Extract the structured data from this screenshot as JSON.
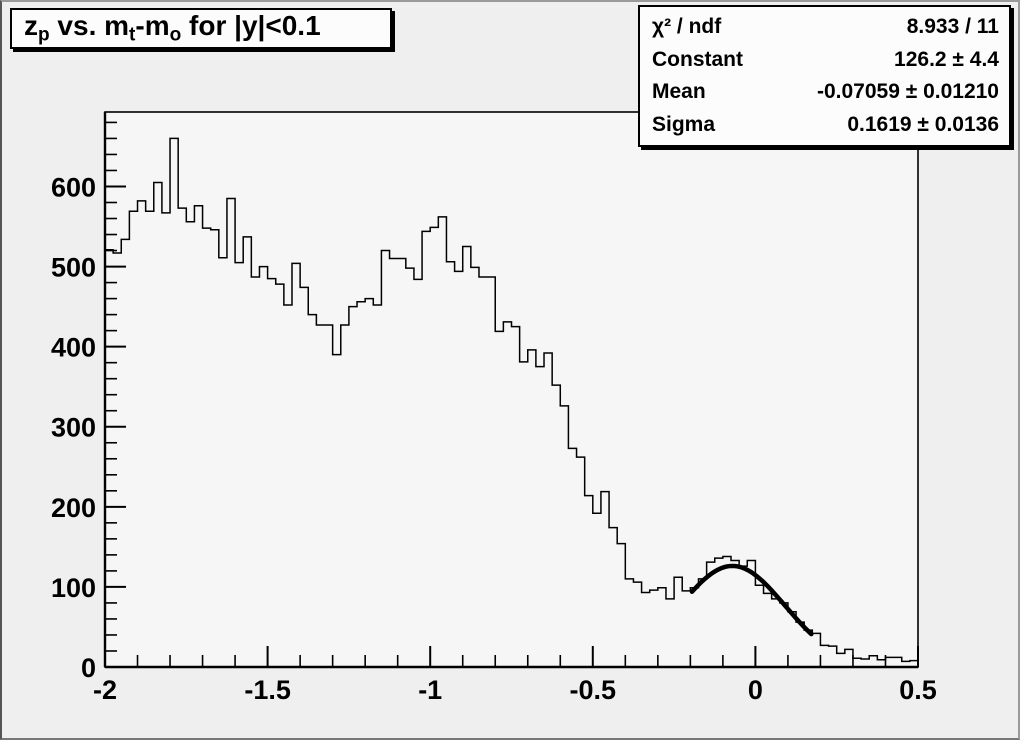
{
  "canvas": {
    "bg": "#efefef",
    "frame_bg": "#f6f6f6",
    "line_color": "#000000"
  },
  "title": {
    "text": "z_p vs. m_t-m_o for |y|<0.1",
    "segments": [
      {
        "text": "z",
        "sub": false
      },
      {
        "text": "p",
        "sub": true
      },
      {
        "text": " vs. m",
        "sub": false
      },
      {
        "text": "t",
        "sub": true
      },
      {
        "text": "-m",
        "sub": false
      },
      {
        "text": "o",
        "sub": true
      },
      {
        "text": " for |y|<0.1",
        "sub": false
      }
    ]
  },
  "stats": {
    "rows": [
      {
        "label": "χ² / ndf",
        "value": "8.933 / 11"
      },
      {
        "label": "Constant",
        "value": "126.2 ± 4.4"
      },
      {
        "label": "Mean",
        "value": "-0.07059 ± 0.01210"
      },
      {
        "label": "Sigma",
        "value": "0.1619 ± 0.0136"
      }
    ]
  },
  "chart_data": {
    "type": "histogram-step",
    "title": "z_p vs. m_t-m_o for |y|<0.1",
    "xlabel": "",
    "ylabel": "",
    "xlim": [
      -2,
      0.5
    ],
    "ylim": [
      0,
      693
    ],
    "grid": false,
    "x_start": -2.0,
    "bin_width": 0.025,
    "values": [
      521,
      517,
      534,
      569,
      582,
      569,
      605,
      567,
      660,
      573,
      556,
      576,
      548,
      546,
      511,
      585,
      505,
      537,
      487,
      500,
      485,
      478,
      452,
      504,
      474,
      440,
      427,
      427,
      390,
      427,
      450,
      456,
      460,
      452,
      520,
      510,
      510,
      498,
      484,
      544,
      549,
      562,
      506,
      494,
      525,
      499,
      487,
      487,
      419,
      431,
      425,
      381,
      396,
      375,
      392,
      352,
      326,
      273,
      262,
      214,
      192,
      219,
      174,
      154,
      110,
      106,
      93,
      96,
      99,
      85,
      112,
      95,
      99,
      110,
      131,
      136,
      138,
      133,
      126,
      133,
      102,
      92,
      85,
      80,
      69,
      56,
      46,
      42,
      27,
      26,
      17,
      22,
      11,
      10,
      14,
      9,
      12,
      12,
      7,
      8
    ],
    "x_ticks": [
      -2,
      -1.5,
      -1,
      -0.5,
      0,
      0.5
    ],
    "x_tick_labels": [
      "-2",
      "-1.5",
      "-1",
      "-0.5",
      "0",
      "0.5"
    ],
    "x_minor_step": 0.1,
    "y_ticks": [
      0,
      100,
      200,
      300,
      400,
      500,
      600
    ],
    "y_tick_labels": [
      "0",
      "100",
      "200",
      "300",
      "400",
      "500",
      "600"
    ],
    "y_minor_step": 20,
    "fit": {
      "type": "gaussian",
      "constant": 126.2,
      "mean": -0.07059,
      "sigma": 0.1619,
      "range": [
        -0.195,
        0.172
      ],
      "line_width": 4.5
    },
    "legend": null
  }
}
